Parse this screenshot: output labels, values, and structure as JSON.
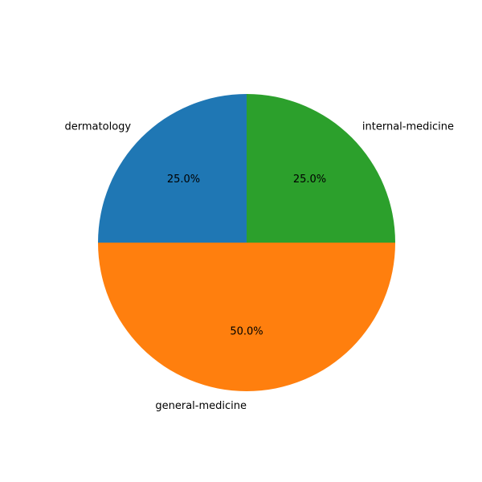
{
  "chart_data": {
    "type": "pie",
    "title": "",
    "slices": [
      {
        "label": "dermatology",
        "value": 25.0,
        "percent_label": "25.0%",
        "color": "#1f77b4"
      },
      {
        "label": "general-medicine",
        "value": 50.0,
        "percent_label": "50.0%",
        "color": "#ff7f0e"
      },
      {
        "label": "internal-medicine",
        "value": 25.0,
        "percent_label": "25.0%",
        "color": "#2ca02c"
      }
    ],
    "start_angle_deg": 90,
    "direction": "counterclockwise",
    "legend": "none"
  }
}
